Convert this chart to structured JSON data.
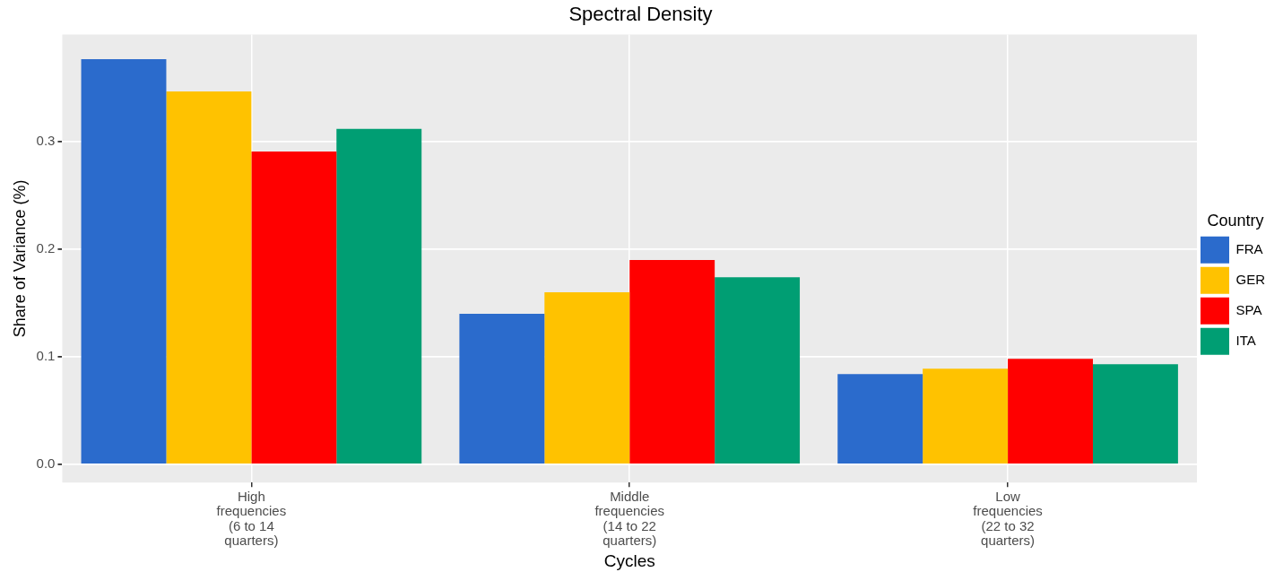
{
  "chart_data": {
    "type": "bar",
    "title": "Spectral Density",
    "xlabel": "Cycles",
    "ylabel": "Share of Variance (%)",
    "legend_title": "Country",
    "categories": [
      "High\nfrequencies\n(6 to 14\nquarters)",
      "Middle\nfrequencies\n(14 to 22\nquarters)",
      "Low\nfrequencies\n(22 to 32\nquarters)"
    ],
    "series": [
      {
        "name": "FRA",
        "color": "#2b6bcc",
        "values": [
          0.377,
          0.14,
          0.084
        ]
      },
      {
        "name": "GER",
        "color": "#ffc200",
        "values": [
          0.347,
          0.16,
          0.089
        ]
      },
      {
        "name": "SPA",
        "color": "#ff0000",
        "values": [
          0.291,
          0.19,
          0.098
        ]
      },
      {
        "name": "ITA",
        "color": "#009e73",
        "values": [
          0.312,
          0.174,
          0.093
        ]
      }
    ],
    "ylim": [
      -0.017,
      0.4
    ],
    "yticks": [
      {
        "value": 0,
        "label": "0.0"
      },
      {
        "value": 0.1,
        "label": "0.1"
      },
      {
        "value": 0.2,
        "label": "0.2"
      },
      {
        "value": 0.3,
        "label": "0.3"
      }
    ],
    "grid": true,
    "legend": "right"
  }
}
